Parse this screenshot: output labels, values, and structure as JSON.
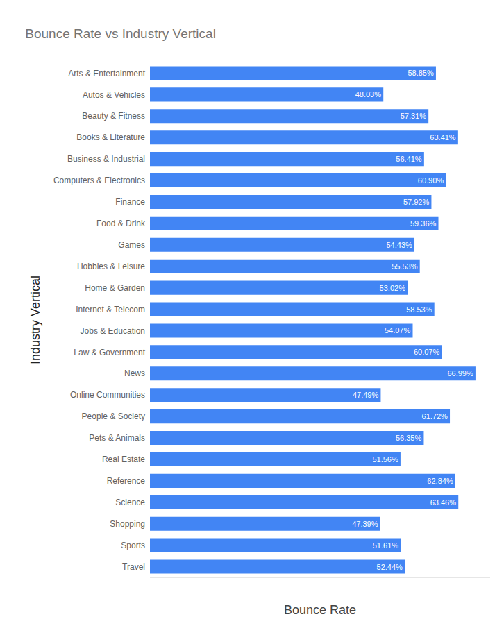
{
  "chart_data": {
    "type": "bar",
    "orientation": "horizontal",
    "title": "Bounce Rate vs Industry Vertical",
    "x_label": "Bounce Rate",
    "y_label": "Industry Vertical",
    "categories": [
      "Arts & Entertainment",
      "Autos & Vehicles",
      "Beauty & Fitness",
      "Books & Literature",
      "Business & Industrial",
      "Computers & Electronics",
      "Finance",
      "Food & Drink",
      "Games",
      "Hobbies & Leisure",
      "Home & Garden",
      "Internet & Telecom",
      "Jobs & Education",
      "Law & Government",
      "News",
      "Online Communities",
      "People & Society",
      "Pets & Animals",
      "Real Estate",
      "Reference",
      "Science",
      "Shopping",
      "Sports",
      "Travel"
    ],
    "values": [
      58.85,
      48.03,
      57.31,
      63.41,
      56.41,
      60.9,
      57.92,
      59.36,
      54.43,
      55.53,
      53.02,
      58.53,
      54.07,
      60.07,
      66.99,
      47.49,
      61.72,
      56.35,
      51.56,
      62.84,
      63.46,
      47.39,
      51.61,
      52.44
    ],
    "value_labels": [
      "58.85%",
      "48.03%",
      "57.31%",
      "63.41%",
      "56.41%",
      "60.90%",
      "57.92%",
      "59.36%",
      "54.43%",
      "55.53%",
      "53.02%",
      "58.53%",
      "54.07%",
      "60.07%",
      "66.99%",
      "47.49%",
      "61.72%",
      "56.35%",
      "51.56%",
      "62.84%",
      "63.46%",
      "47.39%",
      "51.61%",
      "52.44%"
    ],
    "color": "#4285f4",
    "xlim": [
      0,
      70
    ],
    "grid": false,
    "data_labels": true,
    "tick_labels": "y"
  }
}
